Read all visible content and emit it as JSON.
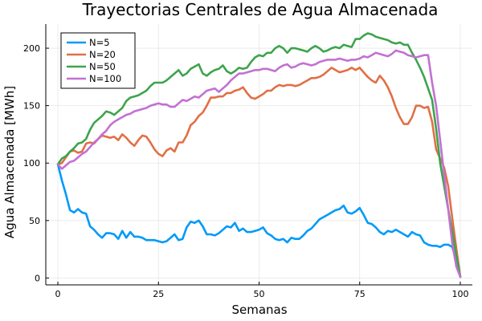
{
  "chart_data": {
    "type": "line",
    "title": "Trayectorias Centrales de Agua Almacenada",
    "xlabel": "Semanas",
    "ylabel": "Agua Almacenada [MWh]",
    "xlim": [
      -3,
      103
    ],
    "ylim": [
      -6,
      221
    ],
    "xticks": [
      0,
      25,
      50,
      75,
      100
    ],
    "yticks": [
      0,
      50,
      100,
      150,
      200
    ],
    "grid": true,
    "legend_position": "top-left",
    "series": [
      {
        "name": "N=5",
        "color": "#009af9",
        "x": [
          0,
          1,
          2,
          3,
          4,
          5,
          6,
          7,
          8,
          9,
          10,
          11,
          12,
          13,
          14,
          15,
          16,
          17,
          18,
          19,
          20,
          21,
          22,
          23,
          24,
          25,
          26,
          27,
          28,
          29,
          30,
          31,
          32,
          33,
          34,
          35,
          36,
          37,
          38,
          39,
          40,
          41,
          42,
          43,
          44,
          45,
          46,
          47,
          48,
          49,
          50,
          51,
          52,
          53,
          54,
          55,
          56,
          57,
          58,
          59,
          60,
          61,
          62,
          63,
          64,
          65,
          66,
          67,
          68,
          69,
          70,
          71,
          72,
          73,
          74,
          75,
          76,
          77,
          78,
          79,
          80,
          81,
          82,
          83,
          84,
          85,
          86,
          87,
          88,
          89,
          90,
          91,
          92,
          93,
          94,
          95,
          96,
          97,
          98,
          99,
          100
        ],
        "values": [
          99,
          85,
          73,
          59,
          57,
          60,
          57,
          56,
          45,
          42,
          38,
          35,
          39,
          39,
          38,
          34,
          41,
          35,
          40,
          36,
          36,
          35,
          33,
          33,
          33,
          32,
          31,
          32,
          35,
          38,
          33,
          34,
          44,
          49,
          48,
          50,
          45,
          38,
          38,
          37,
          39,
          42,
          45,
          44,
          48,
          41,
          43,
          40,
          40,
          41,
          42,
          44,
          39,
          37,
          34,
          33,
          34,
          31,
          35,
          34,
          34,
          37,
          41,
          43,
          47,
          51,
          53,
          55,
          57,
          59,
          60,
          63,
          57,
          56,
          58,
          61,
          55,
          48,
          47,
          44,
          40,
          38,
          41,
          40,
          42,
          40,
          38,
          36,
          40,
          38,
          37,
          31,
          29,
          28,
          28,
          27,
          29,
          29,
          27,
          15,
          1
        ]
      },
      {
        "name": "N=20",
        "color": "#e26f46",
        "x": [
          0,
          1,
          2,
          3,
          4,
          5,
          6,
          7,
          8,
          9,
          10,
          11,
          12,
          13,
          14,
          15,
          16,
          17,
          18,
          19,
          20,
          21,
          22,
          23,
          24,
          25,
          26,
          27,
          28,
          29,
          30,
          31,
          32,
          33,
          34,
          35,
          36,
          37,
          38,
          39,
          40,
          41,
          42,
          43,
          44,
          45,
          46,
          47,
          48,
          49,
          50,
          51,
          52,
          53,
          54,
          55,
          56,
          57,
          58,
          59,
          60,
          61,
          62,
          63,
          64,
          65,
          66,
          67,
          68,
          69,
          70,
          71,
          72,
          73,
          74,
          75,
          76,
          77,
          78,
          79,
          80,
          81,
          82,
          83,
          84,
          85,
          86,
          87,
          88,
          89,
          90,
          91,
          92,
          93,
          94,
          95,
          96,
          97,
          98,
          99,
          100
        ],
        "values": [
          99,
          100,
          105,
          110,
          111,
          109,
          110,
          117,
          118,
          117,
          121,
          124,
          123,
          122,
          123,
          120,
          125,
          122,
          118,
          115,
          120,
          124,
          123,
          118,
          112,
          108,
          106,
          111,
          113,
          110,
          118,
          118,
          124,
          133,
          136,
          141,
          144,
          150,
          157,
          157,
          158,
          158,
          161,
          161,
          163,
          164,
          166,
          161,
          157,
          156,
          158,
          160,
          163,
          163,
          166,
          168,
          167,
          168,
          168,
          167,
          168,
          170,
          172,
          174,
          174,
          175,
          177,
          180,
          183,
          181,
          179,
          180,
          181,
          183,
          181,
          183,
          179,
          175,
          172,
          170,
          176,
          172,
          166,
          158,
          148,
          140,
          134,
          134,
          140,
          150,
          150,
          148,
          149,
          136,
          112,
          104,
          96,
          80,
          52,
          26,
          1
        ]
      },
      {
        "name": "N=50",
        "color": "#3da44d",
        "x": [
          0,
          1,
          2,
          3,
          4,
          5,
          6,
          7,
          8,
          9,
          10,
          11,
          12,
          13,
          14,
          15,
          16,
          17,
          18,
          19,
          20,
          21,
          22,
          23,
          24,
          25,
          26,
          27,
          28,
          29,
          30,
          31,
          32,
          33,
          34,
          35,
          36,
          37,
          38,
          39,
          40,
          41,
          42,
          43,
          44,
          45,
          46,
          47,
          48,
          49,
          50,
          51,
          52,
          53,
          54,
          55,
          56,
          57,
          58,
          59,
          60,
          61,
          62,
          63,
          64,
          65,
          66,
          67,
          68,
          69,
          70,
          71,
          72,
          73,
          74,
          75,
          76,
          77,
          78,
          79,
          80,
          81,
          82,
          83,
          84,
          85,
          86,
          87,
          88,
          89,
          90,
          91,
          92,
          93,
          94,
          95,
          96,
          97,
          98,
          99,
          100
        ],
        "values": [
          99,
          104,
          106,
          110,
          113,
          117,
          118,
          121,
          129,
          135,
          138,
          141,
          145,
          144,
          142,
          145,
          148,
          154,
          157,
          158,
          159,
          161,
          163,
          167,
          170,
          170,
          170,
          172,
          175,
          178,
          181,
          176,
          178,
          182,
          184,
          186,
          178,
          176,
          179,
          181,
          182,
          185,
          180,
          178,
          180,
          183,
          182,
          183,
          188,
          192,
          194,
          193,
          196,
          196,
          200,
          202,
          200,
          196,
          200,
          200,
          199,
          198,
          197,
          200,
          202,
          200,
          197,
          198,
          200,
          201,
          200,
          203,
          202,
          201,
          208,
          208,
          211,
          213,
          212,
          210,
          209,
          208,
          207,
          205,
          204,
          205,
          203,
          203,
          196,
          190,
          183,
          175,
          165,
          155,
          130,
          100,
          80,
          60,
          40,
          20,
          1
        ]
      },
      {
        "name": "N=100",
        "color": "#c271d2",
        "x": [
          0,
          1,
          2,
          3,
          4,
          5,
          6,
          7,
          8,
          9,
          10,
          11,
          12,
          13,
          14,
          15,
          16,
          17,
          18,
          19,
          20,
          21,
          22,
          23,
          24,
          25,
          26,
          27,
          28,
          29,
          30,
          31,
          32,
          33,
          34,
          35,
          36,
          37,
          38,
          39,
          40,
          41,
          42,
          43,
          44,
          45,
          46,
          47,
          48,
          49,
          50,
          51,
          52,
          53,
          54,
          55,
          56,
          57,
          58,
          59,
          60,
          61,
          62,
          63,
          64,
          65,
          66,
          67,
          68,
          69,
          70,
          71,
          72,
          73,
          74,
          75,
          76,
          77,
          78,
          79,
          80,
          81,
          82,
          83,
          84,
          85,
          86,
          87,
          88,
          89,
          90,
          91,
          92,
          93,
          94,
          95,
          96,
          97,
          98,
          99,
          100
        ],
        "values": [
          99,
          95,
          98,
          101,
          102,
          105,
          108,
          110,
          114,
          118,
          121,
          125,
          128,
          133,
          136,
          138,
          140,
          142,
          143,
          145,
          146,
          147,
          148,
          150,
          151,
          152,
          151,
          151,
          149,
          149,
          152,
          155,
          154,
          156,
          158,
          157,
          160,
          163,
          164,
          165,
          162,
          165,
          168,
          172,
          175,
          178,
          178,
          179,
          180,
          181,
          181,
          182,
          182,
          181,
          180,
          183,
          185,
          186,
          183,
          184,
          186,
          187,
          186,
          185,
          186,
          188,
          189,
          190,
          190,
          190,
          191,
          190,
          189,
          190,
          190,
          191,
          193,
          192,
          194,
          196,
          195,
          194,
          193,
          195,
          198,
          197,
          196,
          194,
          193,
          192,
          193,
          194,
          194,
          170,
          150,
          120,
          90,
          60,
          30,
          10,
          1
        ]
      }
    ]
  }
}
